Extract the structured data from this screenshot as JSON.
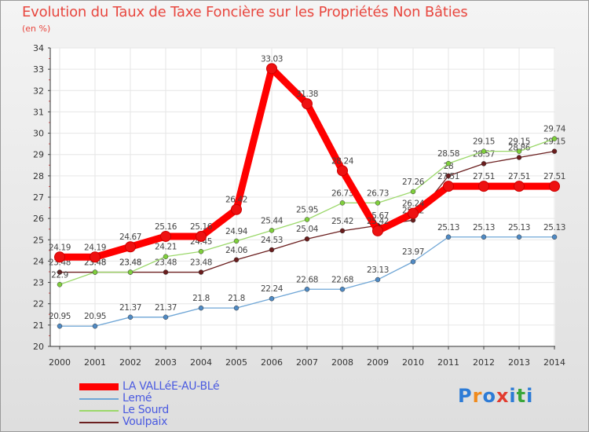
{
  "title": "Evolution du Taux de Taxe Foncière sur les Propriétés Non Bâties",
  "subtitle": "(en %)",
  "logo": {
    "text": "Proxiti",
    "colors": [
      "#2d7bd6",
      "#f08a1c",
      "#2d7bd6",
      "#e23b2e",
      "#2d7bd6",
      "#3aa63a",
      "#2d7bd6"
    ]
  },
  "chart_data": {
    "type": "line",
    "title": "Evolution du Taux de Taxe Foncière sur les Propriétés Non Bâties",
    "ylabel": "(en %)",
    "xlabel": "",
    "ylim": [
      20,
      34
    ],
    "yticks": [
      20,
      21,
      22,
      23,
      24,
      25,
      26,
      27,
      28,
      29,
      30,
      31,
      32,
      33,
      34
    ],
    "x": [
      "2000",
      "2001",
      "2002",
      "2003",
      "2004",
      "2005",
      "2006",
      "2007",
      "2008",
      "2009",
      "2010",
      "2011",
      "2012",
      "2013",
      "2014"
    ],
    "grid": true,
    "legend_position": "bottom-left",
    "series": [
      {
        "name": "Voulpaix",
        "color": "#6b1f1f",
        "dot": "#6a1d1d",
        "values": [
          23.48,
          23.48,
          23.48,
          23.48,
          23.48,
          24.06,
          24.53,
          25.04,
          25.42,
          25.67,
          25.92,
          28,
          28.57,
          28.86,
          29.15
        ],
        "labels": [
          "23.48",
          "23.48",
          "23.48",
          "23.48",
          "23.48",
          "24.06",
          "24.53",
          "25.04",
          "25.42",
          "25.67",
          "25.92",
          "28",
          "28.57",
          "28.86",
          "29.15"
        ]
      },
      {
        "name": "Le Sourd",
        "color": "#9bd86a",
        "dot": "#7fcf3c",
        "values": [
          22.9,
          23.48,
          23.48,
          24.21,
          24.45,
          24.94,
          25.44,
          25.95,
          26.73,
          26.73,
          27.26,
          28.58,
          29.15,
          29.15,
          29.74
        ],
        "labels": [
          "22.9",
          "23.48",
          "23.48",
          "24.21",
          "24.45",
          "24.94",
          "25.44",
          "25.95",
          "26.73",
          "26.73",
          "27.26",
          "28.58",
          "29.15",
          "29.15",
          "29.74"
        ]
      },
      {
        "name": "Lemé",
        "color": "#6fa6d6",
        "dot": "#4f8ac4",
        "values": [
          20.95,
          20.95,
          21.37,
          21.37,
          21.8,
          21.8,
          22.24,
          22.68,
          22.68,
          23.13,
          23.97,
          25.13,
          25.13,
          25.13,
          25.13
        ],
        "labels": [
          "20.95",
          "20.95",
          "21.37",
          "21.37",
          "21.8",
          "21.8",
          "22.24",
          "22.68",
          "22.68",
          "23.13",
          "23.97",
          "25.13",
          "25.13",
          "25.13",
          "25.13"
        ]
      },
      {
        "name": "LA VALLéE-AU-BLé",
        "color": "#ff0000",
        "dot": "#ee1111",
        "values": [
          24.19,
          24.19,
          24.67,
          25.16,
          25.16,
          26.42,
          33.03,
          31.38,
          28.24,
          25.42,
          26.24,
          27.51,
          27.51,
          27.51,
          27.51
        ],
        "labels": [
          "24.19",
          "24.19",
          "24.67",
          "25.16",
          "25.16",
          "26.42",
          "33.03",
          "31.38",
          "28.24",
          "25.42",
          "26.24",
          "27.51",
          "27.51",
          "27.51",
          "27.51"
        ]
      }
    ]
  },
  "legend": [
    {
      "name": "LA VALLéE-AU-BLé",
      "color": "#ff0000"
    },
    {
      "name": "Lemé",
      "color": "#6fa6d6"
    },
    {
      "name": "Le Sourd",
      "color": "#9bd86a"
    },
    {
      "name": "Voulpaix",
      "color": "#6b1f1f"
    }
  ]
}
